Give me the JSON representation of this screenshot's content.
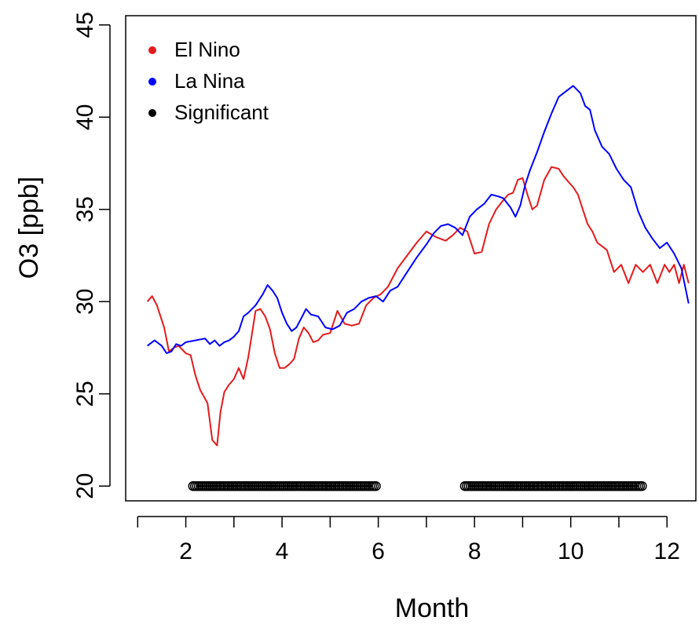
{
  "chart_data": {
    "type": "line",
    "xlabel": "Month",
    "ylabel": "O3 [ppb]",
    "xlim": [
      0.75,
      12.6
    ],
    "ylim": [
      19.2,
      45.5
    ],
    "x_ticks": [
      1,
      2,
      3,
      4,
      5,
      6,
      7,
      8,
      9,
      10,
      11,
      12
    ],
    "x_tick_labels": [
      "",
      "2",
      "",
      "4",
      "",
      "6",
      "",
      "8",
      "",
      "10",
      "",
      "12"
    ],
    "y_ticks": [
      20,
      25,
      30,
      35,
      40,
      45
    ],
    "y_tick_labels": [
      "20",
      "25",
      "30",
      "35",
      "40",
      "45"
    ],
    "grid": false,
    "legend_position": "top-left",
    "legend": [
      {
        "label": "El Nino",
        "color": "#e41a1c",
        "marker": "dot"
      },
      {
        "label": "La Nina",
        "color": "#0000ff",
        "marker": "dot"
      },
      {
        "label": "Significant",
        "color": "#000000",
        "marker": "dot"
      }
    ],
    "series": [
      {
        "name": "El Nino",
        "color": "#e41a1c",
        "x": [
          1.2,
          1.3,
          1.4,
          1.55,
          1.65,
          1.75,
          1.85,
          2.0,
          2.1,
          2.2,
          2.3,
          2.45,
          2.55,
          2.65,
          2.72,
          2.8,
          2.9,
          3.0,
          3.1,
          3.2,
          3.3,
          3.45,
          3.55,
          3.65,
          3.75,
          3.85,
          3.95,
          4.05,
          4.15,
          4.25,
          4.35,
          4.45,
          4.55,
          4.65,
          4.75,
          4.85,
          5.0,
          5.15,
          5.3,
          5.45,
          5.6,
          5.75,
          5.9,
          6.05,
          6.2,
          6.4,
          6.6,
          6.8,
          7.0,
          7.2,
          7.4,
          7.55,
          7.7,
          7.85,
          8.0,
          8.15,
          8.3,
          8.45,
          8.6,
          8.7,
          8.8,
          8.9,
          9.0,
          9.1,
          9.2,
          9.3,
          9.45,
          9.6,
          9.75,
          9.85,
          9.95,
          10.05,
          10.15,
          10.25,
          10.35,
          10.45,
          10.55,
          10.65,
          10.75,
          10.9,
          11.05,
          11.2,
          11.35,
          11.5,
          11.65,
          11.8,
          11.95,
          12.05,
          12.15,
          12.25,
          12.35,
          12.45
        ],
        "values": [
          30.0,
          30.3,
          29.8,
          28.6,
          27.3,
          27.5,
          27.6,
          27.2,
          27.1,
          26.0,
          25.2,
          24.5,
          22.5,
          22.2,
          24.0,
          25.1,
          25.5,
          25.8,
          26.4,
          25.8,
          27.0,
          29.5,
          29.6,
          29.2,
          28.5,
          27.2,
          26.4,
          26.4,
          26.6,
          26.9,
          28.0,
          28.6,
          28.3,
          27.8,
          27.9,
          28.2,
          28.3,
          29.5,
          28.8,
          28.7,
          28.8,
          29.8,
          30.2,
          30.4,
          30.8,
          31.8,
          32.5,
          33.2,
          33.8,
          33.5,
          33.3,
          33.6,
          34.0,
          33.8,
          32.6,
          32.7,
          34.2,
          35.0,
          35.5,
          35.8,
          35.9,
          36.6,
          36.7,
          35.8,
          35.0,
          35.2,
          36.6,
          37.3,
          37.2,
          36.8,
          36.5,
          36.2,
          35.8,
          35.0,
          34.2,
          33.8,
          33.2,
          33.0,
          32.8,
          31.6,
          32.0,
          31.0,
          32.0,
          31.6,
          32.0,
          31.0,
          32.0,
          31.6,
          32.0,
          31.0,
          32.0,
          31.0
        ]
      },
      {
        "name": "La Nina",
        "color": "#0000ff",
        "x": [
          1.2,
          1.35,
          1.5,
          1.6,
          1.7,
          1.8,
          1.9,
          2.0,
          2.2,
          2.4,
          2.5,
          2.6,
          2.7,
          2.8,
          2.9,
          3.0,
          3.1,
          3.2,
          3.3,
          3.45,
          3.6,
          3.7,
          3.8,
          3.9,
          4.0,
          4.1,
          4.2,
          4.3,
          4.4,
          4.5,
          4.6,
          4.75,
          4.9,
          5.05,
          5.2,
          5.35,
          5.5,
          5.65,
          5.8,
          5.95,
          6.1,
          6.25,
          6.4,
          6.6,
          6.8,
          7.0,
          7.15,
          7.3,
          7.45,
          7.6,
          7.75,
          7.9,
          8.05,
          8.2,
          8.35,
          8.5,
          8.6,
          8.75,
          8.85,
          8.95,
          9.05,
          9.15,
          9.3,
          9.45,
          9.6,
          9.75,
          9.9,
          10.05,
          10.2,
          10.3,
          10.4,
          10.5,
          10.65,
          10.8,
          10.95,
          11.1,
          11.25,
          11.4,
          11.55,
          11.7,
          11.85,
          12.0,
          12.15,
          12.3,
          12.45
        ],
        "values": [
          27.6,
          27.9,
          27.6,
          27.2,
          27.3,
          27.7,
          27.6,
          27.8,
          27.9,
          28.0,
          27.7,
          27.9,
          27.6,
          27.8,
          27.9,
          28.1,
          28.4,
          29.2,
          29.4,
          29.8,
          30.4,
          30.9,
          30.6,
          30.2,
          29.4,
          28.8,
          28.4,
          28.6,
          29.1,
          29.6,
          29.3,
          29.2,
          28.6,
          28.5,
          28.7,
          29.4,
          29.6,
          30.0,
          30.2,
          30.3,
          30.0,
          30.6,
          30.8,
          31.6,
          32.4,
          33.1,
          33.7,
          34.1,
          34.2,
          34.0,
          33.6,
          34.6,
          35.0,
          35.3,
          35.8,
          35.7,
          35.6,
          35.1,
          34.6,
          35.2,
          36.3,
          37.1,
          38.1,
          39.2,
          40.2,
          41.1,
          41.4,
          41.7,
          41.3,
          40.6,
          40.4,
          39.3,
          38.4,
          38.0,
          37.2,
          36.6,
          36.2,
          34.9,
          34.0,
          33.4,
          32.9,
          33.2,
          32.6,
          31.8,
          29.9
        ]
      }
    ],
    "significant": {
      "name": "Significant",
      "color": "#000000",
      "y": 20,
      "ranges": [
        [
          2.15,
          5.95
        ],
        [
          7.8,
          11.5
        ]
      ],
      "spacing": 0.04
    }
  }
}
